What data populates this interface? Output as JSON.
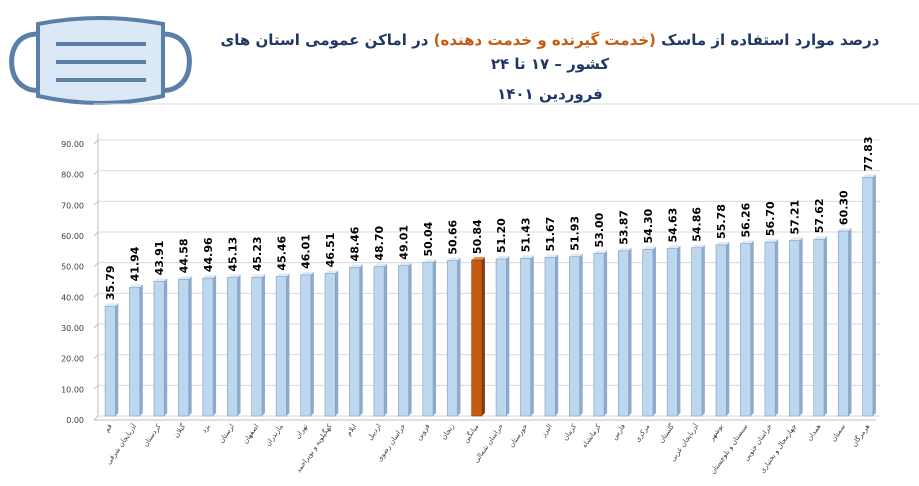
{
  "title": {
    "line1_part1": "درصد موارد استفاده از ماسک ",
    "line1_highlight": "(خدمت گیرنده و خدمت دهنده)",
    "line1_part2": " در اماکن عمومی استان های کشور – ۱۷ تا ۲۴",
    "line2": "فروردین ۱۴۰۱"
  },
  "icon": "face-mask-icon",
  "colors": {
    "bar": "#bdd7ee",
    "bar_edge": "#7f9fc0",
    "highlight_bar": "#c55a11",
    "title": "#1f3864",
    "title_highlight": "#c55a11",
    "mask": "#9dc3e6",
    "mask_line": "#5b7fa8"
  },
  "chart_data": {
    "type": "bar",
    "categories": [
      "قم",
      "آذربایجان شرقی",
      "کردستان",
      "گیلان",
      "یزد",
      "لرستان",
      "اصفهان",
      "مازندران",
      "تهران",
      "کهگیلویه و بویراحمد",
      "ایلام",
      "اردبیل",
      "خراسان رضوی",
      "قزوین",
      "زنجان",
      "میانگین",
      "خراسان شمالی",
      "خوزستان",
      "البرز",
      "کرمان",
      "کرمانشاه",
      "فارس",
      "مرکزی",
      "گلستان",
      "آذربایجان غربی",
      "بوشهر",
      "سیستان و بلوچستان",
      "خراسان جنوبی",
      "چهارمحال و بختیاری",
      "همدان",
      "سمنان",
      "هرمزگان"
    ],
    "values": [
      35.79,
      41.94,
      43.91,
      44.58,
      44.96,
      45.13,
      45.23,
      45.46,
      46.01,
      46.51,
      48.46,
      48.7,
      49.01,
      50.04,
      50.66,
      50.84,
      51.2,
      51.43,
      51.67,
      51.93,
      53.0,
      53.87,
      54.3,
      54.63,
      54.86,
      55.78,
      56.26,
      56.7,
      57.21,
      57.62,
      60.3,
      77.83
    ],
    "value_labels": [
      "35.79",
      "41.94",
      "43.91",
      "44.58",
      "44.96",
      "45.13",
      "45.23",
      "45.46",
      "46.01",
      "46.51",
      "48.46",
      "48.70",
      "49.01",
      "50.04",
      "50.66",
      "50.84",
      "51.20",
      "51.43",
      "51.67",
      "51.93",
      "53.00",
      "53.87",
      "54.30",
      "54.63",
      "54.86",
      "55.78",
      "56.26",
      "56.70",
      "57.21",
      "57.62",
      "60.30",
      "77.83"
    ],
    "highlight_category": "میانگین",
    "ylim": [
      0,
      90
    ],
    "yticks": [
      "0.00",
      "10.00",
      "20.00",
      "30.00",
      "40.00",
      "50.00",
      "60.00",
      "70.00",
      "80.00",
      "90.00"
    ],
    "grid": true,
    "legend": "none"
  }
}
